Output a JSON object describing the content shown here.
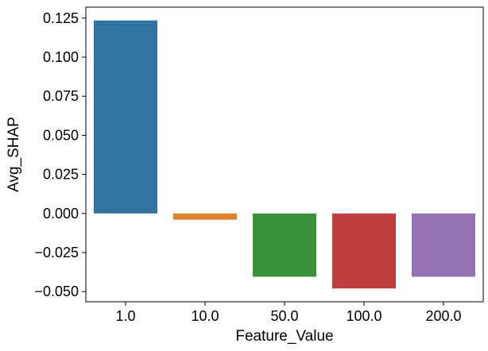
{
  "chart_data": {
    "type": "bar",
    "categories": [
      "1.0",
      "10.0",
      "50.0",
      "100.0",
      "200.0"
    ],
    "values": [
      0.1235,
      -0.004,
      -0.0405,
      -0.048,
      -0.0405
    ],
    "colors": [
      "#3274a1",
      "#e1812c",
      "#3a923a",
      "#c03d3e",
      "#9372b2"
    ],
    "xlabel": "Feature_Value",
    "ylabel": "Avg_SHAP",
    "ylim": [
      -0.0565,
      0.132
    ],
    "yticks": [
      -0.05,
      -0.025,
      0.0,
      0.025,
      0.05,
      0.075,
      0.1,
      0.125
    ],
    "ytick_labels": [
      "−0.050",
      "−0.025",
      "0.000",
      "0.025",
      "0.050",
      "0.075",
      "0.100",
      "0.125"
    ],
    "grid": false,
    "legend": false
  }
}
